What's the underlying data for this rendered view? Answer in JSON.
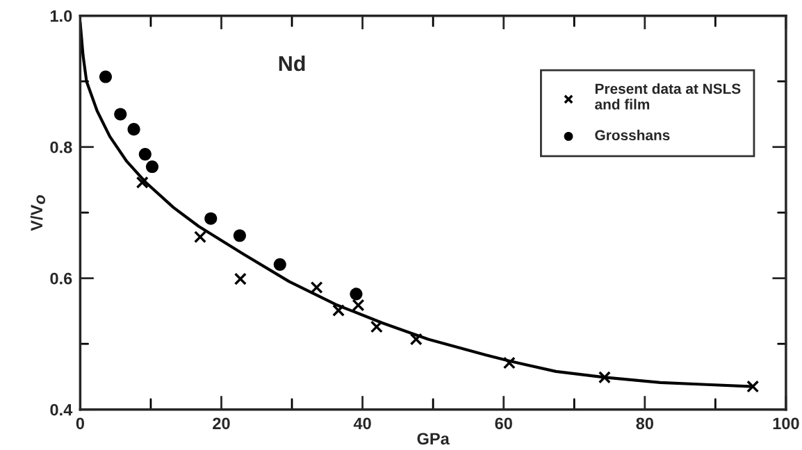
{
  "chart_data": {
    "type": "scatter",
    "xlabel": "GPa",
    "ylabel": "V/V$_{O}$",
    "annotations": [
      "Nd"
    ],
    "xlim": [
      0,
      100
    ],
    "ylim": [
      0.4,
      1.0
    ],
    "xticks": [
      0,
      {
        "value": 10,
        "label": null
      },
      20,
      {
        "value": 30,
        "label": null
      },
      40,
      {
        "value": 50,
        "label": null
      },
      60,
      {
        "value": 70,
        "label": null
      },
      80,
      {
        "value": 90,
        "label": null
      },
      100
    ],
    "yticks": [
      0.4,
      {
        "value": 0.5,
        "label": null
      },
      0.6,
      {
        "value": 0.7,
        "label": null
      },
      0.8,
      {
        "value": 0.9,
        "label": null
      },
      {
        "value": 1.0,
        "label": "1.0"
      }
    ],
    "grid": false,
    "legend": "top right",
    "series": [
      {
        "name": "Present data at NSLS\nand film",
        "type": "scatter",
        "marker": "cross",
        "color": "#000000",
        "x": [
          8.8,
          17.0,
          22.7,
          33.5,
          36.6,
          39.4,
          42.0,
          47.6,
          60.8,
          74.3,
          95.3
        ],
        "values": [
          0.746,
          0.663,
          0.599,
          0.586,
          0.551,
          0.559,
          0.526,
          0.507,
          0.471,
          0.449,
          0.435
        ]
      },
      {
        "name": "Grosshans",
        "type": "scatter",
        "marker": "circle",
        "color": "#000000",
        "x": [
          3.6,
          5.7,
          7.6,
          9.2,
          10.2,
          18.5,
          22.6,
          28.3,
          39.1
        ],
        "values": [
          0.907,
          0.85,
          0.827,
          0.789,
          0.77,
          0.691,
          0.665,
          0.621,
          0.576
        ]
      },
      {
        "type": "line",
        "marker": "none",
        "line_style": "solid",
        "color": "#000000",
        "x": [
          0,
          0.4,
          0.9,
          2.4,
          4.2,
          6.6,
          9.3,
          13.2,
          16.8,
          23.1,
          29.6,
          36.2,
          42.8,
          49.3,
          57.5,
          60.8,
          67.4,
          74.3,
          82.2,
          88.7,
          95.3
        ],
        "values": [
          0.99,
          0.94,
          0.9,
          0.855,
          0.816,
          0.778,
          0.746,
          0.708,
          0.679,
          0.637,
          0.595,
          0.56,
          0.532,
          0.507,
          0.483,
          0.474,
          0.458,
          0.449,
          0.441,
          0.438,
          0.435
        ]
      }
    ]
  }
}
